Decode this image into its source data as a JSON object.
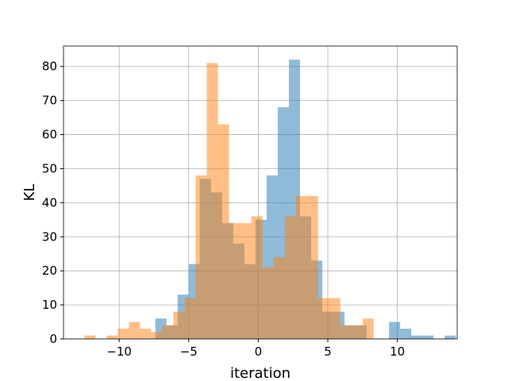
{
  "chart_data": {
    "type": "bar",
    "title": "",
    "xlabel": "iteration",
    "ylabel": "KL",
    "xlim": [
      -14,
      14.3
    ],
    "ylim": [
      0,
      86
    ],
    "xticks": [
      -10,
      -5,
      0,
      5,
      10
    ],
    "xtick_labels": [
      "−10",
      "−5",
      "0",
      "5",
      "10"
    ],
    "yticks": [
      0,
      10,
      20,
      30,
      40,
      50,
      60,
      70,
      80
    ],
    "ytick_labels": [
      "0",
      "10",
      "20",
      "30",
      "40",
      "50",
      "60",
      "70",
      "80"
    ],
    "grid": true,
    "legend": "none",
    "series": [
      {
        "color": "#1f77b4",
        "opacity": 0.5,
        "bin_start": -7.4,
        "bin_width": 0.8,
        "values": [
          6,
          4,
          13,
          22,
          47,
          43,
          34,
          28,
          22,
          35,
          48,
          68,
          82,
          36,
          23,
          8,
          8,
          4,
          4,
          0,
          0,
          5,
          3,
          1,
          1,
          0,
          1
        ]
      },
      {
        "color": "#ff7f0e",
        "opacity": 0.5,
        "bin_start": -12.5,
        "bin_width": 0.8,
        "values": [
          1,
          0,
          1,
          3,
          5,
          3,
          2,
          4,
          8,
          12,
          48,
          81,
          63,
          34,
          34,
          36,
          21,
          24,
          36,
          42,
          42,
          12,
          12,
          4,
          4,
          6
        ]
      }
    ]
  }
}
